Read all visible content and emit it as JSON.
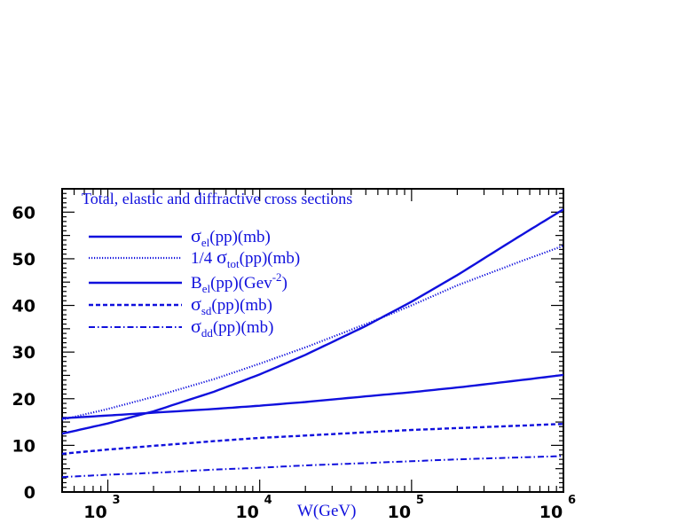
{
  "chart_data": {
    "type": "line",
    "title": "Total, elastic and diffractive cross sections",
    "xlabel": "W(GeV)",
    "ylabel": "",
    "xscale": "log",
    "xlim": [
      500,
      1000000
    ],
    "ylim": [
      0,
      65
    ],
    "x_ticks": [
      {
        "base": "10",
        "exp": "3",
        "value": 1000
      },
      {
        "base": "10",
        "exp": "4",
        "value": 10000
      },
      {
        "base": "10",
        "exp": "5",
        "value": 100000
      },
      {
        "base": "10",
        "exp": "6",
        "value": 1000000
      }
    ],
    "y_ticks": [
      "0",
      "10",
      "20",
      "30",
      "40",
      "50",
      "60"
    ],
    "legend_position": "top-left",
    "color": "#1010dd",
    "series": [
      {
        "id": "sigma_el",
        "legend": {
          "sym": "σ",
          "sub": "el",
          "post": "(pp)(mb)"
        },
        "dash": "solid",
        "x": [
          500,
          1000,
          2000,
          5000,
          10000,
          20000,
          50000,
          100000,
          200000,
          500000,
          1000000
        ],
        "y": [
          12.5,
          14.7,
          17.3,
          21.5,
          25.2,
          29.4,
          35.6,
          40.8,
          46.5,
          54.6,
          60.6
        ]
      },
      {
        "id": "sigma_tot_quarter",
        "legend": {
          "pre": "1/4 ",
          "sym": "σ",
          "sub": "tot",
          "post": "(pp)(mb)"
        },
        "dash": "dotted",
        "x": [
          500,
          1000,
          2000,
          5000,
          10000,
          20000,
          50000,
          100000,
          200000,
          500000,
          1000000
        ],
        "y": [
          15.5,
          17.8,
          20.4,
          24.2,
          27.5,
          31.0,
          36.0,
          40.0,
          44.3,
          49.2,
          52.8
        ]
      },
      {
        "id": "b_el",
        "legend": {
          "sym": "B",
          "sub": "el",
          "post": "(pp)(Gev",
          "sup": "-2",
          "end": ")"
        },
        "dash": "solid",
        "x": [
          500,
          1000,
          2000,
          5000,
          10000,
          20000,
          50000,
          100000,
          200000,
          500000,
          1000000
        ],
        "y": [
          15.8,
          16.4,
          17.0,
          17.8,
          18.5,
          19.3,
          20.5,
          21.4,
          22.4,
          23.9,
          25.1
        ]
      },
      {
        "id": "sigma_sd",
        "legend": {
          "sym": "σ",
          "sub": "sd",
          "post": "(pp)(mb)"
        },
        "dash": "dashed",
        "x": [
          500,
          1000,
          2000,
          5000,
          10000,
          20000,
          50000,
          100000,
          200000,
          500000,
          1000000
        ],
        "y": [
          8.2,
          9.1,
          9.9,
          10.9,
          11.6,
          12.1,
          12.8,
          13.3,
          13.7,
          14.2,
          14.6
        ]
      },
      {
        "id": "sigma_dd",
        "legend": {
          "sym": "σ",
          "sub": "dd",
          "post": "(pp)(mb)"
        },
        "dash": "dashdot",
        "x": [
          500,
          1000,
          2000,
          5000,
          10000,
          20000,
          50000,
          100000,
          200000,
          500000,
          1000000
        ],
        "y": [
          3.2,
          3.7,
          4.1,
          4.8,
          5.2,
          5.7,
          6.2,
          6.6,
          7.0,
          7.4,
          7.7
        ]
      }
    ]
  }
}
